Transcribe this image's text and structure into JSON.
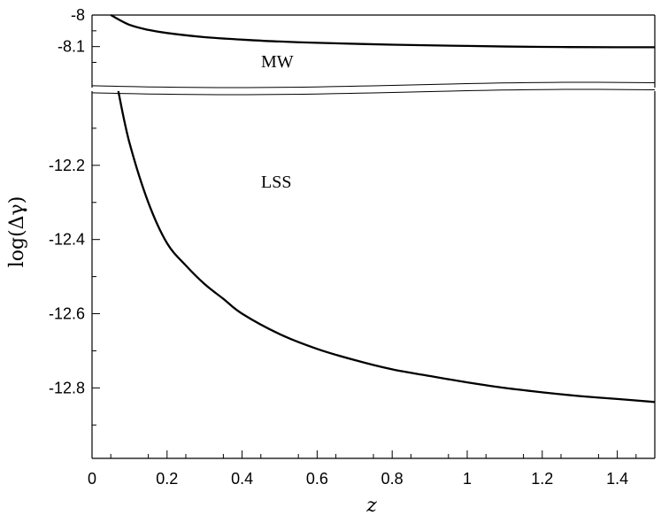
{
  "chart_data": {
    "type": "line",
    "title": "",
    "xlabel": "z",
    "ylabel": "log(Δγ)",
    "broken_y_axis": true,
    "xlim": [
      0,
      1.5
    ],
    "xticks": [
      "0",
      "0.2",
      "0.4",
      "0.6",
      "0.8",
      "1",
      "1.2",
      "1.4"
    ],
    "upper_panel": {
      "ylim": [
        -8.0,
        -8.23
      ],
      "yticks": [
        "-8",
        "-8.1"
      ]
    },
    "lower_panel": {
      "ylim": [
        -12.0,
        -12.99
      ],
      "yticks": [
        "-12.2",
        "-12.4",
        "-12.6",
        "-12.8"
      ]
    },
    "annotations": [
      "MW",
      "LSS"
    ],
    "series": [
      {
        "panel": "upper",
        "x": [
          0.05,
          0.1,
          0.15,
          0.2,
          0.3,
          0.4,
          0.5,
          0.6,
          0.8,
          1.0,
          1.2,
          1.4,
          1.5
        ],
        "y": [
          -8.0,
          -8.031,
          -8.047,
          -8.057,
          -8.07,
          -8.078,
          -8.084,
          -8.088,
          -8.094,
          -8.098,
          -8.101,
          -8.102,
          -8.102
        ]
      },
      {
        "panel": "lower",
        "x": [
          0.07,
          0.1,
          0.15,
          0.2,
          0.25,
          0.3,
          0.35,
          0.4,
          0.5,
          0.6,
          0.7,
          0.8,
          0.9,
          1.0,
          1.1,
          1.2,
          1.3,
          1.4,
          1.5
        ],
        "y": [
          -12.0,
          -12.14,
          -12.3,
          -12.41,
          -12.47,
          -12.52,
          -12.56,
          -12.6,
          -12.655,
          -12.695,
          -12.725,
          -12.75,
          -12.768,
          -12.785,
          -12.8,
          -12.812,
          -12.822,
          -12.83,
          -12.838
        ]
      }
    ]
  }
}
